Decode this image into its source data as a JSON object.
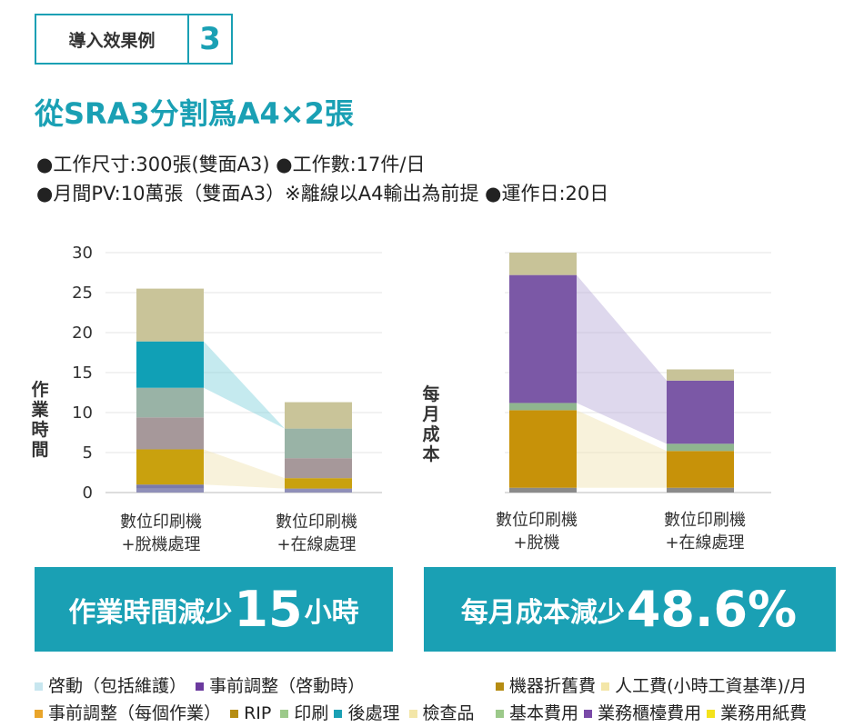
{
  "badge": {
    "label": "導入效果例",
    "number": "3"
  },
  "title": "從SRA3分割爲A4×2張",
  "conditions": {
    "line1": "●工作尺寸:300張(雙面A3) ●工作數:17件/日",
    "line2": "●月間PV:10萬張（雙面A3）※離線以A4輸出為前提 ●運作日:20日"
  },
  "colors": {
    "startup": "#c7e6ef",
    "prep_startup": "#6b3a9e",
    "prep_job": "#e9a52a",
    "rip": "#b58c12",
    "print": "#9cc98a",
    "post": "#1aa0b4",
    "inspect": "#f3e6a8",
    "depreciation": "#b58c12",
    "labor": "#f3e6a8",
    "base": "#9cc98a",
    "counter": "#7a4aa8",
    "paper": "#f4e21b",
    "banner": "#1aa0b4"
  },
  "chart_data": [
    {
      "type": "bar",
      "stacked": true,
      "ylabel": "作業時間",
      "ylim": [
        0,
        30
      ],
      "yticks": [
        "0",
        "5",
        "10",
        "15",
        "20",
        "25",
        "30"
      ],
      "categories": [
        "數位印刷機\n+脫機處理",
        "數位印刷機\n+在線處理"
      ],
      "series": [
        {
          "key": "s1",
          "values": [
            0.5,
            0.5
          ],
          "color": "#8f8fb8"
        },
        {
          "key": "s2",
          "values": [
            0.5,
            0.0
          ],
          "color": "#7a7aaa"
        },
        {
          "key": "s3",
          "values": [
            4.4,
            1.3
          ],
          "color": "#c9a10e"
        },
        {
          "key": "s4",
          "values": [
            4.0,
            2.5
          ],
          "color": "#a6989a"
        },
        {
          "key": "s5",
          "values": [
            3.7,
            3.7
          ],
          "color": "#99b3a6"
        },
        {
          "key": "s6",
          "values": [
            5.8,
            0.0
          ],
          "color": "#10a0b6"
        },
        {
          "key": "s7",
          "values": [
            6.6,
            3.3
          ],
          "color": "#c9c499"
        }
      ]
    },
    {
      "type": "bar",
      "stacked": true,
      "ylabel": "每月成本",
      "categories": [
        "數位印刷機\n+脫機",
        "數位印刷機\n+在線處理"
      ],
      "series": [
        {
          "key": "c1",
          "values": [
            0.6,
            0.6
          ],
          "color": "#8a8a8a"
        },
        {
          "key": "c2",
          "values": [
            9.7,
            4.6
          ],
          "color": "#c79209"
        },
        {
          "key": "c3",
          "values": [
            0.9,
            0.9
          ],
          "color": "#8fb58f"
        },
        {
          "key": "c4",
          "values": [
            16.0,
            7.9
          ],
          "color": "#7b58a6"
        },
        {
          "key": "c5",
          "values": [
            2.8,
            1.4
          ],
          "color": "#c8c398"
        }
      ]
    }
  ],
  "banners": {
    "left": {
      "pre": "作業時間減少",
      "num": "15",
      "post": "小時"
    },
    "right": {
      "pre": "每月成本減少",
      "num": "48.6%"
    }
  },
  "legend": {
    "startup": "啓動（包括維護）",
    "prep_startup": "事前調整（啓動時）",
    "prep_job": "事前調整（每個作業）",
    "rip": "RIP",
    "print": "印刷",
    "post": "後處理",
    "inspect": "檢查品",
    "depreciation": "機器折舊費",
    "labor": "人工費(小時工資基準)/月",
    "base": "基本費用",
    "counter": "業務櫃檯費用",
    "paper": "業務用紙費"
  }
}
